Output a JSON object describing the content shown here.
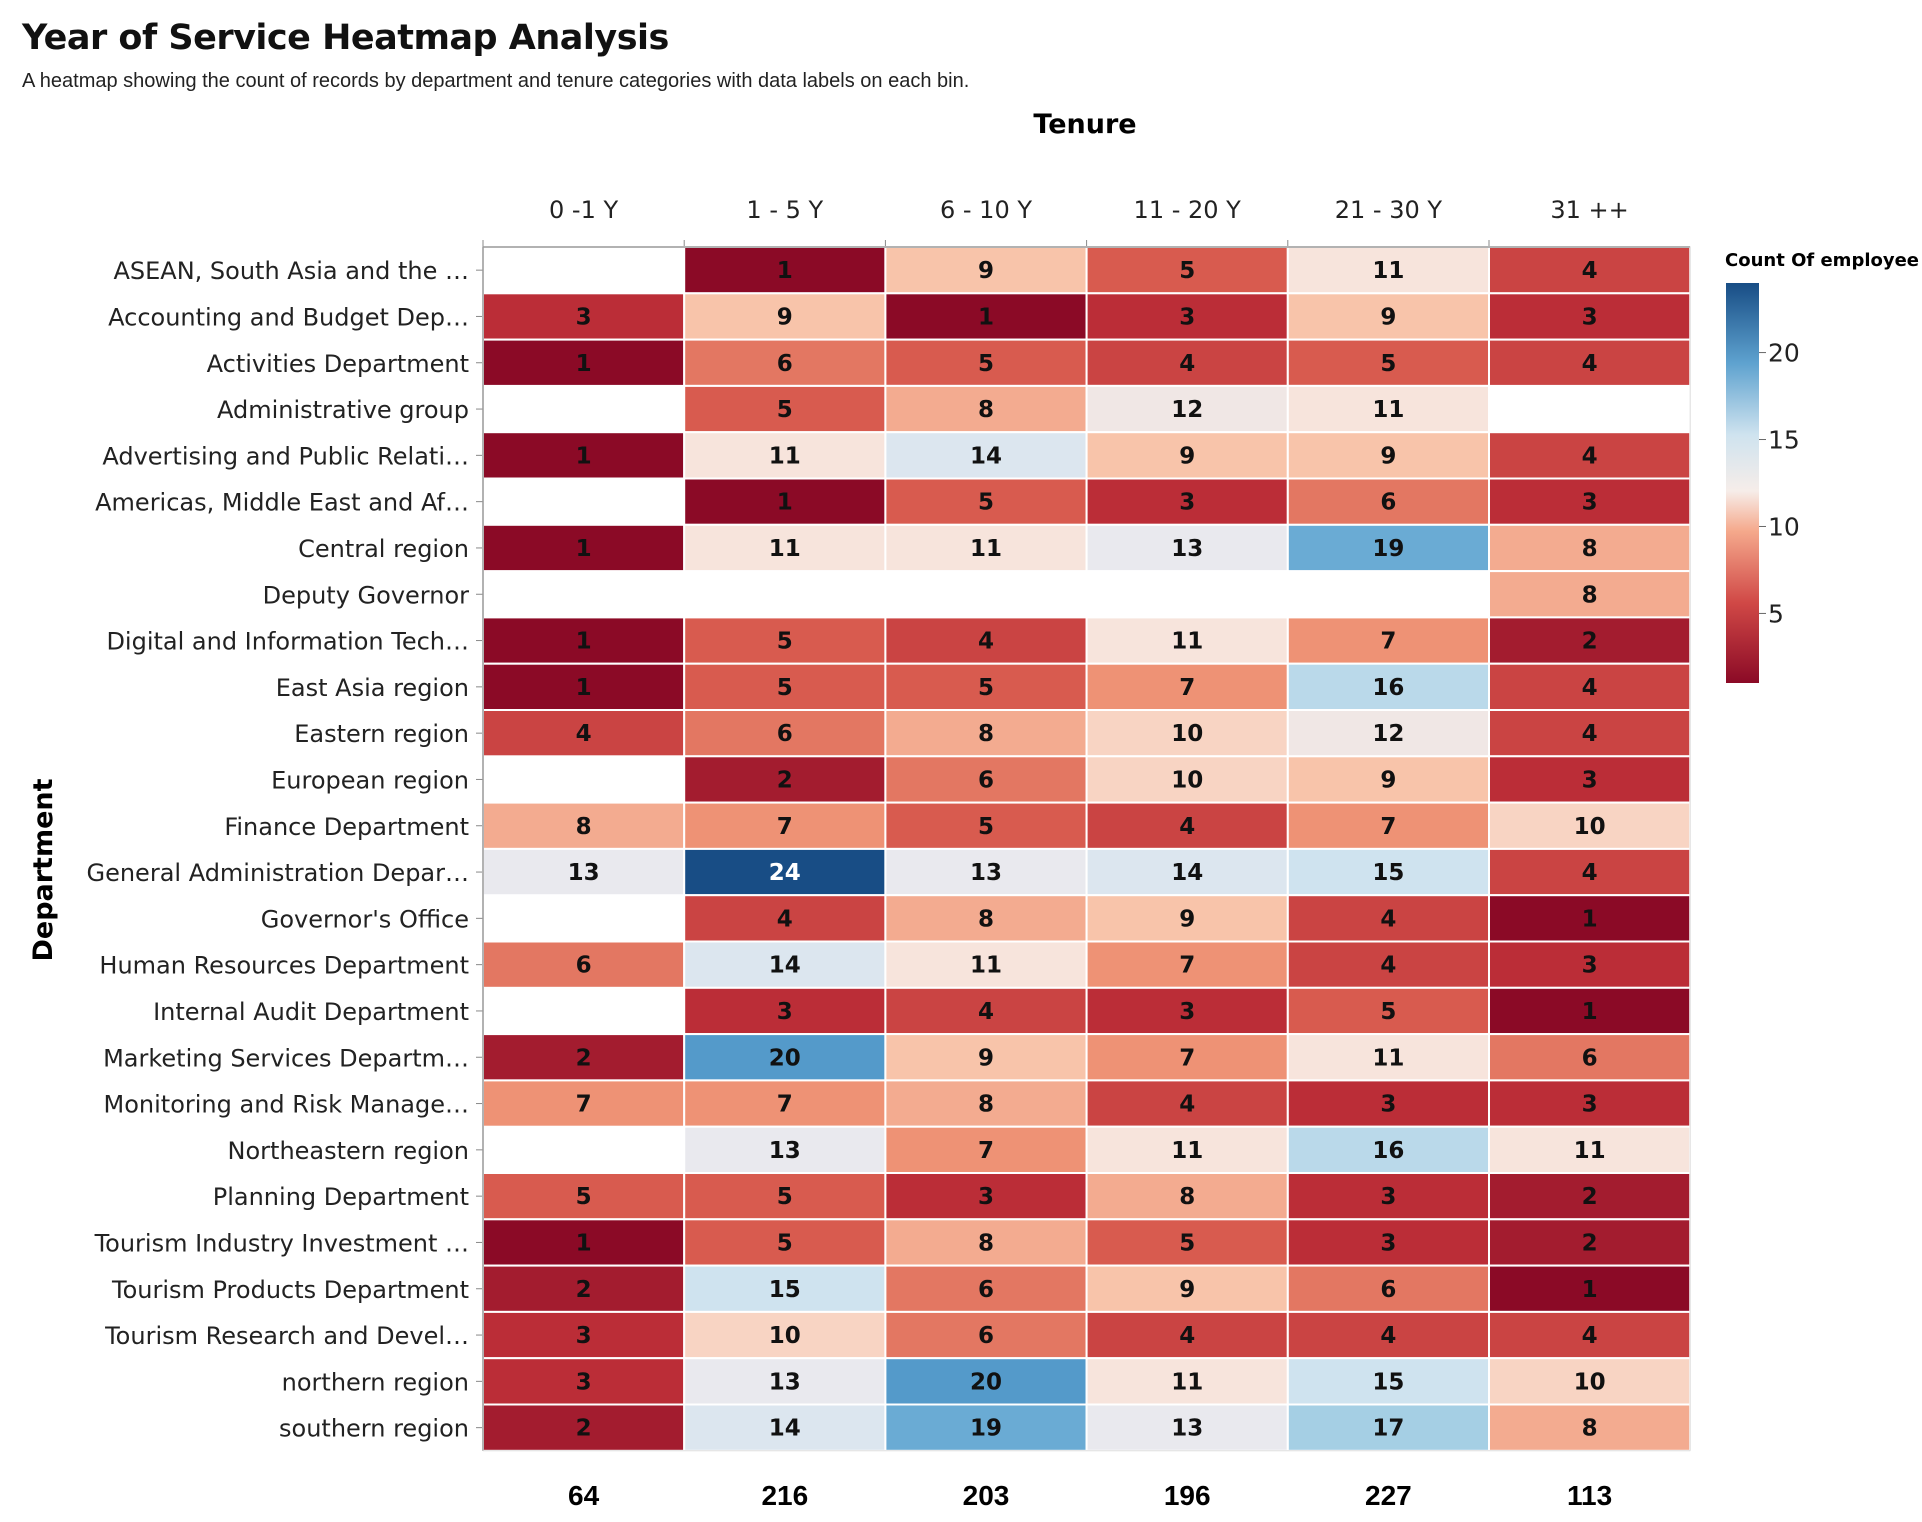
{
  "chart_data": {
    "type": "heatmap",
    "title": "Year of Service Heatmap Analysis",
    "subtitle": "A heatmap showing the count of records by department and tenure categories with data labels on each bin.",
    "xlabel": "Tenure",
    "ylabel": "Department",
    "columns": [
      "0 -1 Y",
      "1 - 5 Y",
      "6 - 10 Y",
      "11 - 20 Y",
      "21 - 30 Y",
      "31 ++"
    ],
    "rows": [
      "ASEAN, South Asia and the …",
      "Accounting and Budget Dep…",
      "Activities Department",
      "Administrative group",
      "Advertising and Public Relati…",
      "Americas, Middle East and Af…",
      "Central region",
      "Deputy Governor",
      "Digital and Information Tech…",
      "East Asia region",
      "Eastern region",
      "European region",
      "Finance Department",
      "General Administration Depar…",
      "Governor's Office",
      "Human Resources Department",
      "Internal Audit Department",
      "Marketing Services Departm…",
      "Monitoring and Risk Manage…",
      "Northeastern region",
      "Planning Department",
      "Tourism Industry Investment …",
      "Tourism Products Department",
      "Tourism Research and Devel…",
      "northern region",
      "southern region"
    ],
    "values": [
      [
        null,
        1,
        9,
        5,
        11,
        4
      ],
      [
        3,
        9,
        1,
        3,
        9,
        3
      ],
      [
        1,
        6,
        5,
        4,
        5,
        4
      ],
      [
        null,
        5,
        8,
        12,
        11,
        null
      ],
      [
        1,
        11,
        14,
        9,
        9,
        4
      ],
      [
        null,
        1,
        5,
        3,
        6,
        3
      ],
      [
        1,
        11,
        11,
        13,
        19,
        8
      ],
      [
        null,
        null,
        null,
        null,
        null,
        8
      ],
      [
        1,
        5,
        4,
        11,
        7,
        2
      ],
      [
        1,
        5,
        5,
        7,
        16,
        4
      ],
      [
        4,
        6,
        8,
        10,
        12,
        4
      ],
      [
        null,
        2,
        6,
        10,
        9,
        3
      ],
      [
        8,
        7,
        5,
        4,
        7,
        10
      ],
      [
        13,
        24,
        13,
        14,
        15,
        4
      ],
      [
        null,
        4,
        8,
        9,
        4,
        1
      ],
      [
        6,
        14,
        11,
        7,
        4,
        3
      ],
      [
        null,
        3,
        4,
        3,
        5,
        1
      ],
      [
        2,
        20,
        9,
        7,
        11,
        6
      ],
      [
        7,
        7,
        8,
        4,
        3,
        3
      ],
      [
        null,
        13,
        7,
        11,
        16,
        11
      ],
      [
        5,
        5,
        3,
        8,
        3,
        2
      ],
      [
        1,
        5,
        8,
        5,
        3,
        2
      ],
      [
        2,
        15,
        6,
        9,
        6,
        1
      ],
      [
        3,
        10,
        6,
        4,
        4,
        4
      ],
      [
        3,
        13,
        20,
        11,
        15,
        10
      ],
      [
        2,
        14,
        19,
        13,
        17,
        8
      ]
    ],
    "column_totals": [
      "64",
      "216",
      "203",
      "196",
      "227",
      "113"
    ],
    "legend": {
      "title": "Count Of employee",
      "ticks": [
        "5",
        "10",
        "15",
        "20"
      ],
      "placement": "right",
      "range": [
        1,
        24
      ]
    },
    "colors": {
      "low": "#8b0a26",
      "mid_low": "#e8826a",
      "mid": "#f7ede8",
      "mid_high": "#cfe3ef",
      "high": "#184d85"
    }
  }
}
